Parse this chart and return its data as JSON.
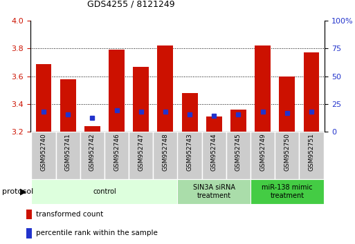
{
  "title": "GDS4255 / 8121249",
  "samples": [
    "GSM952740",
    "GSM952741",
    "GSM952742",
    "GSM952746",
    "GSM952747",
    "GSM952748",
    "GSM952743",
    "GSM952744",
    "GSM952745",
    "GSM952749",
    "GSM952750",
    "GSM952751"
  ],
  "red_bar_tops": [
    3.69,
    3.58,
    3.24,
    3.79,
    3.67,
    3.82,
    3.48,
    3.31,
    3.36,
    3.82,
    3.6,
    3.77
  ],
  "blue_marker_values": [
    3.345,
    3.325,
    3.3,
    3.355,
    3.345,
    3.345,
    3.325,
    3.315,
    3.325,
    3.345,
    3.335,
    3.345
  ],
  "bar_bottom": 3.2,
  "ylim_left": [
    3.2,
    4.0
  ],
  "ylim_right": [
    0,
    100
  ],
  "yticks_left": [
    3.2,
    3.4,
    3.6,
    3.8,
    4.0
  ],
  "yticks_right": [
    0,
    25,
    50,
    75,
    100
  ],
  "ytick_labels_right": [
    "0",
    "25",
    "50",
    "75",
    "100%"
  ],
  "red_color": "#cc1100",
  "blue_color": "#2233cc",
  "bar_width": 0.65,
  "groups": [
    {
      "label": "control",
      "start": 0,
      "end": 6,
      "color": "#ddffdd"
    },
    {
      "label": "SIN3A siRNA\ntreatment",
      "start": 6,
      "end": 9,
      "color": "#aaddaa"
    },
    {
      "label": "miR-138 mimic\ntreatment",
      "start": 9,
      "end": 12,
      "color": "#44cc44"
    }
  ],
  "tick_label_color_left": "#cc1100",
  "tick_label_color_right": "#2233cc",
  "blue_marker_size": 5,
  "cell_color": "#cccccc",
  "cell_edge_color": "#ffffff"
}
